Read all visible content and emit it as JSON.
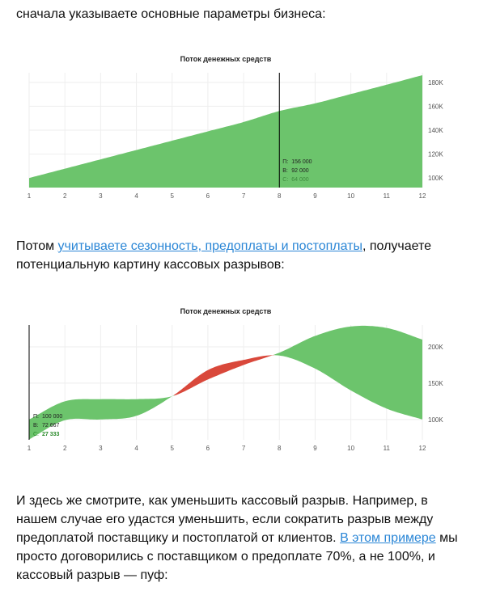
{
  "paragraphs": {
    "p1": "сначала указываете основные параметры бизнеса:",
    "p2_before": "Потом ",
    "p2_link": "учитываете сезонность, предоплаты и постоплаты",
    "p2_after": ", получаете потенциальную картину кассовых разрывов:",
    "p3_before": "И здесь же смотрите, как уменьшить кассовый разрыв. Например, в нашем случае его удастся уменьшить, если сократить разрыв между предоплатой поставщику и постоплатой от клиентов. ",
    "p3_link": "В этом примере",
    "p3_after": " мы просто договорились с поставщиком о предоплате 70%, а не 100%, и кассовый разрыв — пуф:"
  },
  "colors": {
    "positive": "#6cc46c",
    "negative": "#d9483b",
    "cursor": "#000000",
    "link": "#2a86d6"
  },
  "chart_data": [
    {
      "type": "area",
      "title": "Поток денежных средств",
      "x": [
        1,
        2,
        3,
        4,
        5,
        6,
        7,
        8,
        9,
        10,
        11,
        12
      ],
      "series": [
        {
          "name": "П",
          "values": [
            100000,
            107800,
            115600,
            123400,
            131200,
            139000,
            146800,
            156000,
            162400,
            170200,
            178000,
            186000
          ]
        },
        {
          "name": "В",
          "values": [
            92000,
            92000,
            92000,
            92000,
            92000,
            92000,
            92000,
            92000,
            92000,
            92000,
            92000,
            92000
          ]
        }
      ],
      "yticks": [
        "100K",
        "120K",
        "140K",
        "160K",
        "180K"
      ],
      "ylim": [
        92000,
        188000
      ],
      "cursor_x": 8,
      "tooltip": [
        {
          "label": "П:",
          "value": "156 000"
        },
        {
          "label": "В:",
          "value": "92 000"
        },
        {
          "label": "С:",
          "value": "64 000"
        }
      ]
    },
    {
      "type": "area",
      "title": "Поток денежных средств",
      "x": [
        1,
        2,
        3,
        4,
        5,
        6,
        7,
        8,
        9,
        10,
        11,
        12
      ],
      "series": [
        {
          "name": "П",
          "values": [
            100000,
            125000,
            128000,
            128000,
            132000,
            155000,
            175000,
            192000,
            215000,
            228000,
            226000,
            210000
          ]
        },
        {
          "name": "В",
          "values": [
            72667,
            99000,
            100000,
            105000,
            132000,
            168000,
            182000,
            188000,
            170000,
            140000,
            115000,
            100000
          ]
        }
      ],
      "yticks": [
        "100K",
        "150K",
        "200K"
      ],
      "ylim": [
        72000,
        230000
      ],
      "cursor_x": 1,
      "tooltip": [
        {
          "label": "П:",
          "value": "100 000"
        },
        {
          "label": "В:",
          "value": "72 667"
        },
        {
          "label": "С:",
          "value": "27 333"
        }
      ]
    }
  ]
}
